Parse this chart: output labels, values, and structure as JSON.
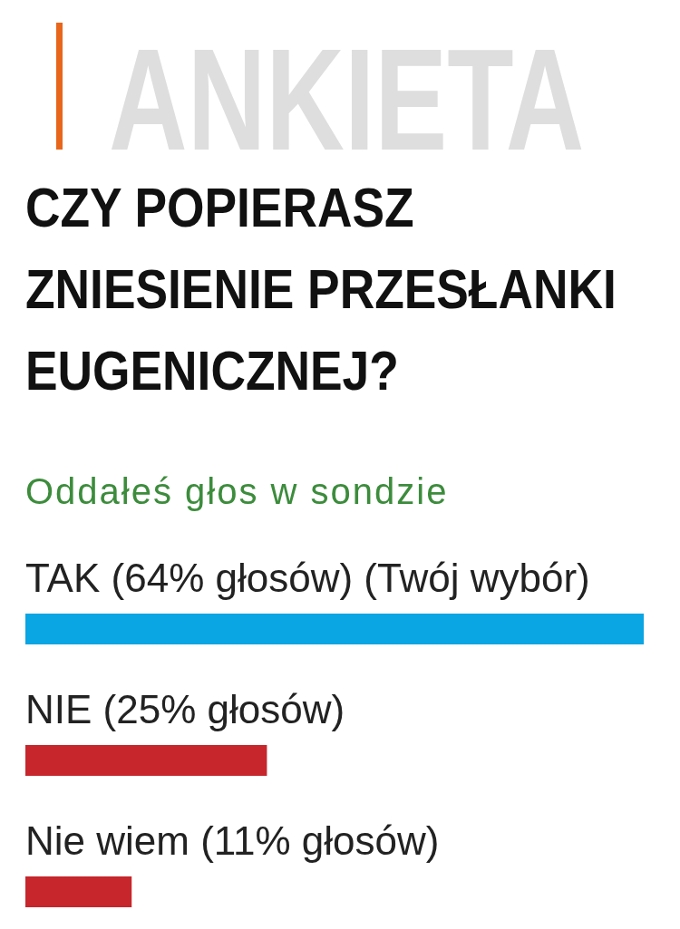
{
  "chart_data": {
    "type": "bar",
    "title": "CZY POPIERASZ ZNIESIENIE PRZESŁANKI EUGENICZNEJ?",
    "subtitle": "Oddałeś głos w sondzie",
    "annotations": [
      "ANKIETA"
    ],
    "orientation": "horizontal",
    "categories": [
      "TAK",
      "NIE",
      "Nie wiem"
    ],
    "values": [
      64,
      25,
      11
    ],
    "value_labels": [
      "(64% głosów) (Twój wybór)",
      "(25% głosów)",
      "(11% głosów)"
    ],
    "colors": [
      "#0aa5e3",
      "#c6262c",
      "#c6262c"
    ]
  }
}
